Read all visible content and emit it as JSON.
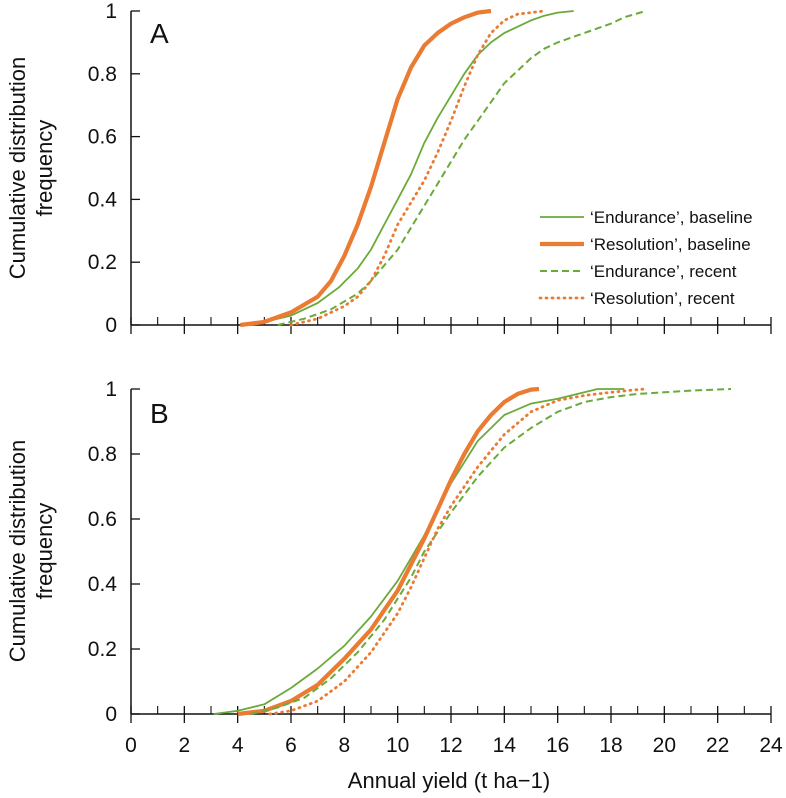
{
  "figure": {
    "xlabel": "Annual yield (t ha−1)",
    "ylabel_line1": "Cumulative distribution",
    "ylabel_line2": "frequency"
  },
  "colors": {
    "endurance": "#6aaa3a",
    "resolution": "#ea7b32",
    "axis": "#111111"
  },
  "chart_data": [
    {
      "type": "line",
      "panel_label": "A",
      "xlim": [
        0,
        24
      ],
      "ylim": [
        0,
        1
      ],
      "x_ticks": [
        0,
        2,
        4,
        6,
        8,
        10,
        12,
        14,
        16,
        18,
        20,
        22,
        24
      ],
      "y_tick_labels": [
        "0",
        "0.2",
        "0.4",
        "0.6",
        "0.8",
        "1"
      ],
      "y_ticks": [
        0,
        0.2,
        0.4,
        0.6,
        0.8,
        1
      ],
      "legend": {
        "position": "right",
        "entries": [
          "‘Endurance’, baseline",
          "‘Resolution’, baseline",
          "‘Endurance’, recent",
          "‘Resolution’, recent"
        ]
      },
      "series": [
        {
          "name": "‘Endurance’, baseline",
          "style": "solid-thin",
          "color_key": "endurance",
          "x": [
            4.2,
            5.0,
            6.0,
            7.0,
            7.8,
            8.5,
            9.0,
            9.5,
            10.0,
            10.5,
            11.0,
            11.5,
            12.0,
            12.5,
            13.0,
            13.5,
            14.0,
            14.5,
            15.0,
            15.5,
            16.0,
            16.6
          ],
          "y": [
            0,
            0.01,
            0.03,
            0.07,
            0.12,
            0.18,
            0.24,
            0.32,
            0.4,
            0.48,
            0.58,
            0.66,
            0.73,
            0.8,
            0.86,
            0.9,
            0.93,
            0.95,
            0.97,
            0.985,
            0.995,
            1.0
          ]
        },
        {
          "name": "‘Resolution’, baseline",
          "style": "solid-thick",
          "color_key": "resolution",
          "x": [
            4.1,
            5.0,
            6.0,
            7.0,
            7.5,
            8.0,
            8.5,
            9.0,
            9.5,
            10.0,
            10.5,
            11.0,
            11.5,
            12.0,
            12.5,
            13.0,
            13.5
          ],
          "y": [
            0,
            0.01,
            0.04,
            0.09,
            0.14,
            0.22,
            0.32,
            0.44,
            0.58,
            0.72,
            0.82,
            0.89,
            0.93,
            0.96,
            0.98,
            0.995,
            1.0
          ]
        },
        {
          "name": "‘Endurance’, recent",
          "style": "dashed",
          "color_key": "endurance",
          "x": [
            5.5,
            6.5,
            7.5,
            8.5,
            9.0,
            9.5,
            10.0,
            10.5,
            11.0,
            11.5,
            12.0,
            12.5,
            13.0,
            13.5,
            14.0,
            14.5,
            15.0,
            15.5,
            16.0,
            17.0,
            18.0,
            18.5,
            19.3
          ],
          "y": [
            0,
            0.02,
            0.05,
            0.1,
            0.14,
            0.19,
            0.24,
            0.31,
            0.38,
            0.45,
            0.52,
            0.59,
            0.65,
            0.71,
            0.77,
            0.81,
            0.85,
            0.88,
            0.9,
            0.93,
            0.96,
            0.98,
            1.0
          ]
        },
        {
          "name": "‘Resolution’, recent",
          "style": "dotted",
          "color_key": "resolution",
          "x": [
            6.0,
            7.0,
            8.0,
            8.5,
            9.0,
            9.5,
            10.0,
            10.5,
            11.0,
            11.5,
            12.0,
            12.5,
            13.0,
            13.5,
            14.0,
            14.5,
            15.0,
            15.5
          ],
          "y": [
            0,
            0.02,
            0.06,
            0.09,
            0.14,
            0.22,
            0.32,
            0.39,
            0.46,
            0.55,
            0.65,
            0.76,
            0.86,
            0.93,
            0.97,
            0.99,
            0.995,
            1.0
          ]
        }
      ]
    },
    {
      "type": "line",
      "panel_label": "B",
      "xlim": [
        0,
        24
      ],
      "ylim": [
        0,
        1
      ],
      "x_ticks": [
        0,
        2,
        4,
        6,
        8,
        10,
        12,
        14,
        16,
        18,
        20,
        22,
        24
      ],
      "x_tick_labels": [
        "0",
        "2",
        "4",
        "6",
        "8",
        "10",
        "12",
        "14",
        "16",
        "18",
        "20",
        "22",
        "24"
      ],
      "y_ticks": [
        0,
        0.2,
        0.4,
        0.6,
        0.8,
        1
      ],
      "y_tick_labels": [
        "0",
        "0.2",
        "0.4",
        "0.6",
        "0.8",
        "1"
      ],
      "series": [
        {
          "name": "‘Endurance’, baseline",
          "style": "solid-thin",
          "color_key": "endurance",
          "x": [
            3.1,
            4.0,
            5.0,
            6.0,
            7.0,
            8.0,
            9.0,
            10.0,
            11.0,
            12.0,
            13.0,
            14.0,
            15.0,
            16.0,
            17.0,
            17.5,
            18.5
          ],
          "y": [
            0,
            0.01,
            0.03,
            0.08,
            0.14,
            0.21,
            0.3,
            0.41,
            0.55,
            0.71,
            0.84,
            0.92,
            0.955,
            0.97,
            0.99,
            1.0,
            1.0
          ]
        },
        {
          "name": "‘Resolution’, baseline",
          "style": "solid-thick",
          "color_key": "resolution",
          "x": [
            4.0,
            5.0,
            6.0,
            7.0,
            8.0,
            9.0,
            10.0,
            10.5,
            11.0,
            11.5,
            12.0,
            12.5,
            13.0,
            13.5,
            14.0,
            14.5,
            15.0,
            15.3
          ],
          "y": [
            0,
            0.01,
            0.04,
            0.09,
            0.17,
            0.26,
            0.38,
            0.46,
            0.54,
            0.63,
            0.72,
            0.8,
            0.87,
            0.92,
            0.96,
            0.985,
            0.998,
            1.0
          ]
        },
        {
          "name": "‘Endurance’, recent",
          "style": "dashed",
          "color_key": "endurance",
          "x": [
            4.5,
            5.5,
            6.5,
            7.5,
            8.5,
            9.5,
            10.5,
            11.0,
            12.0,
            13.0,
            14.0,
            15.0,
            16.0,
            17.0,
            18.0,
            19.0,
            20.0,
            21.0,
            22.5
          ],
          "y": [
            0,
            0.02,
            0.05,
            0.11,
            0.19,
            0.29,
            0.42,
            0.5,
            0.62,
            0.73,
            0.82,
            0.88,
            0.93,
            0.96,
            0.975,
            0.985,
            0.99,
            0.995,
            1.0
          ]
        },
        {
          "name": "‘Resolution’, recent",
          "style": "dotted",
          "color_key": "resolution",
          "x": [
            5.2,
            6.0,
            7.0,
            8.0,
            9.0,
            10.0,
            10.5,
            11.0,
            11.5,
            12.0,
            13.0,
            14.0,
            15.0,
            16.0,
            17.0,
            18.0,
            19.0,
            19.3
          ],
          "y": [
            0,
            0.01,
            0.04,
            0.1,
            0.19,
            0.31,
            0.39,
            0.48,
            0.57,
            0.64,
            0.76,
            0.86,
            0.93,
            0.965,
            0.98,
            0.99,
            0.998,
            1.0
          ]
        }
      ]
    }
  ]
}
